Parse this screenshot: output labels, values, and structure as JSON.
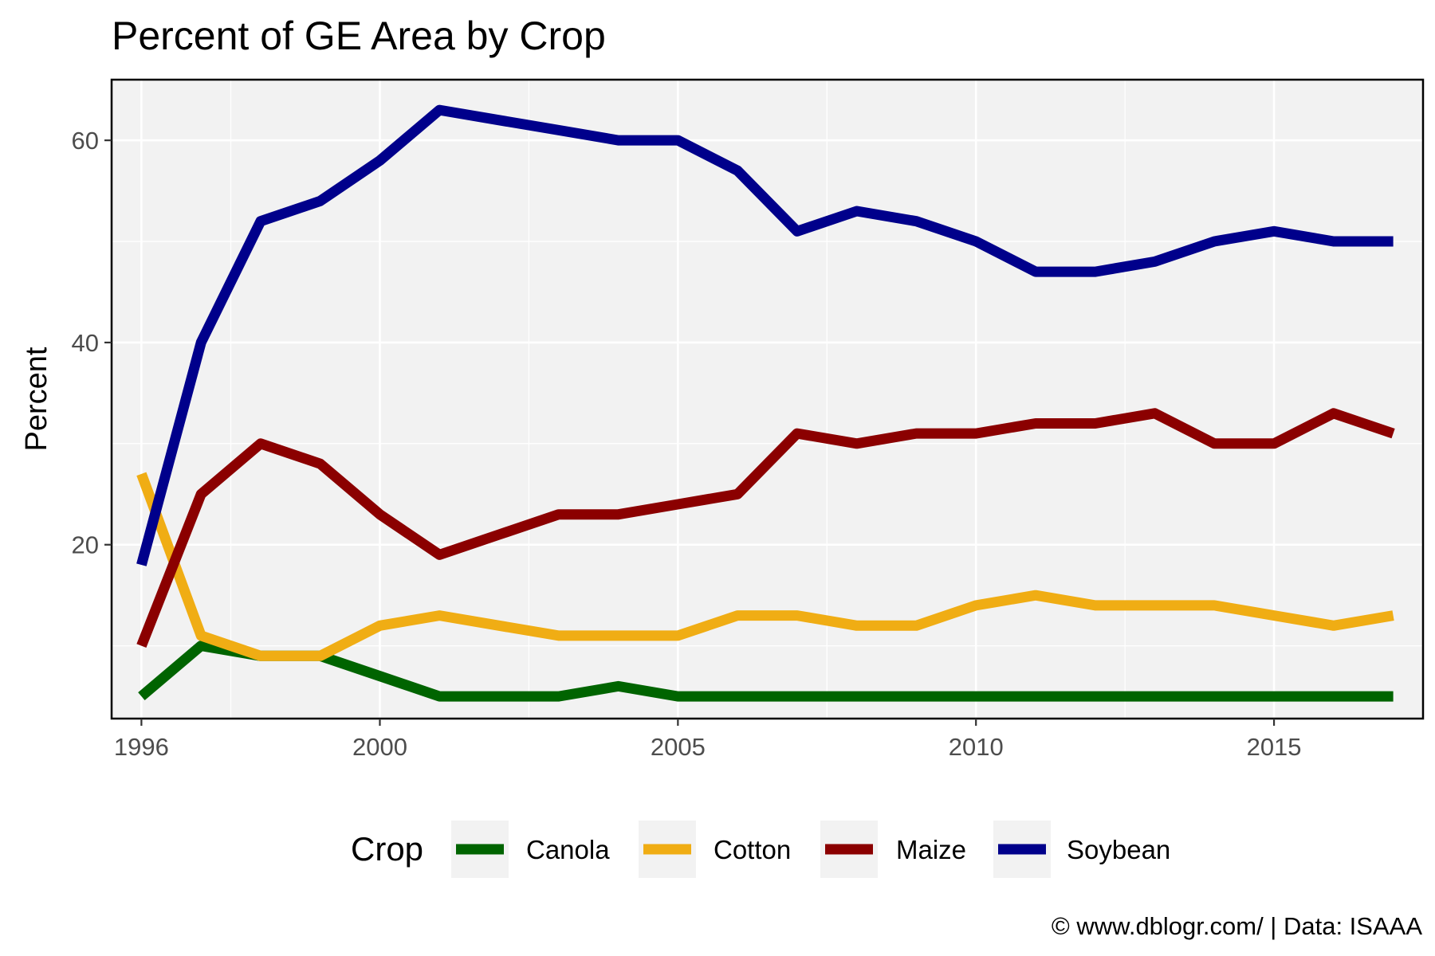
{
  "chart_data": {
    "type": "line",
    "title": "Percent of GE Area by Crop",
    "xlabel": "",
    "ylabel": "Percent",
    "x": [
      1996,
      1997,
      1998,
      1999,
      2000,
      2001,
      2002,
      2003,
      2004,
      2005,
      2006,
      2007,
      2008,
      2009,
      2010,
      2011,
      2012,
      2013,
      2014,
      2015,
      2016,
      2017
    ],
    "xlim": [
      1995.5,
      2017.5
    ],
    "ylim": [
      2.8,
      66.0
    ],
    "x_ticks": [
      1996,
      2000,
      2005,
      2010,
      2015
    ],
    "y_ticks": [
      20,
      40,
      60
    ],
    "x_tick_labels": [
      "1996",
      "2000",
      "2005",
      "2010",
      "2015"
    ],
    "y_tick_labels": [
      "20",
      "40",
      "60"
    ],
    "grid": true,
    "legend_title": "Crop",
    "legend_position": "bottom",
    "series": [
      {
        "name": "Canola",
        "color": "#006400",
        "values": [
          5,
          10,
          9,
          9,
          7,
          5,
          5,
          5,
          6,
          5,
          5,
          5,
          5,
          5,
          5,
          5,
          5,
          5,
          5,
          5,
          5,
          5
        ]
      },
      {
        "name": "Cotton",
        "color": "#F0AD14",
        "values": [
          27,
          11,
          9,
          9,
          12,
          13,
          12,
          11,
          11,
          11,
          13,
          13,
          12,
          12,
          14,
          15,
          14,
          14,
          14,
          13,
          12,
          13
        ]
      },
      {
        "name": "Maize",
        "color": "#8B0000",
        "values": [
          10,
          25,
          30,
          28,
          23,
          19,
          21,
          23,
          23,
          24,
          25,
          31,
          30,
          31,
          31,
          32,
          32,
          33,
          30,
          30,
          33,
          31
        ]
      },
      {
        "name": "Soybean",
        "color": "#00008B",
        "values": [
          18,
          40,
          52,
          54,
          58,
          63,
          62,
          61,
          60,
          60,
          57,
          51,
          53,
          52,
          50,
          47,
          47,
          48,
          50,
          51,
          50,
          50
        ]
      }
    ],
    "caption": "© www.dblogr.com/  |  Data: ISAAA"
  }
}
